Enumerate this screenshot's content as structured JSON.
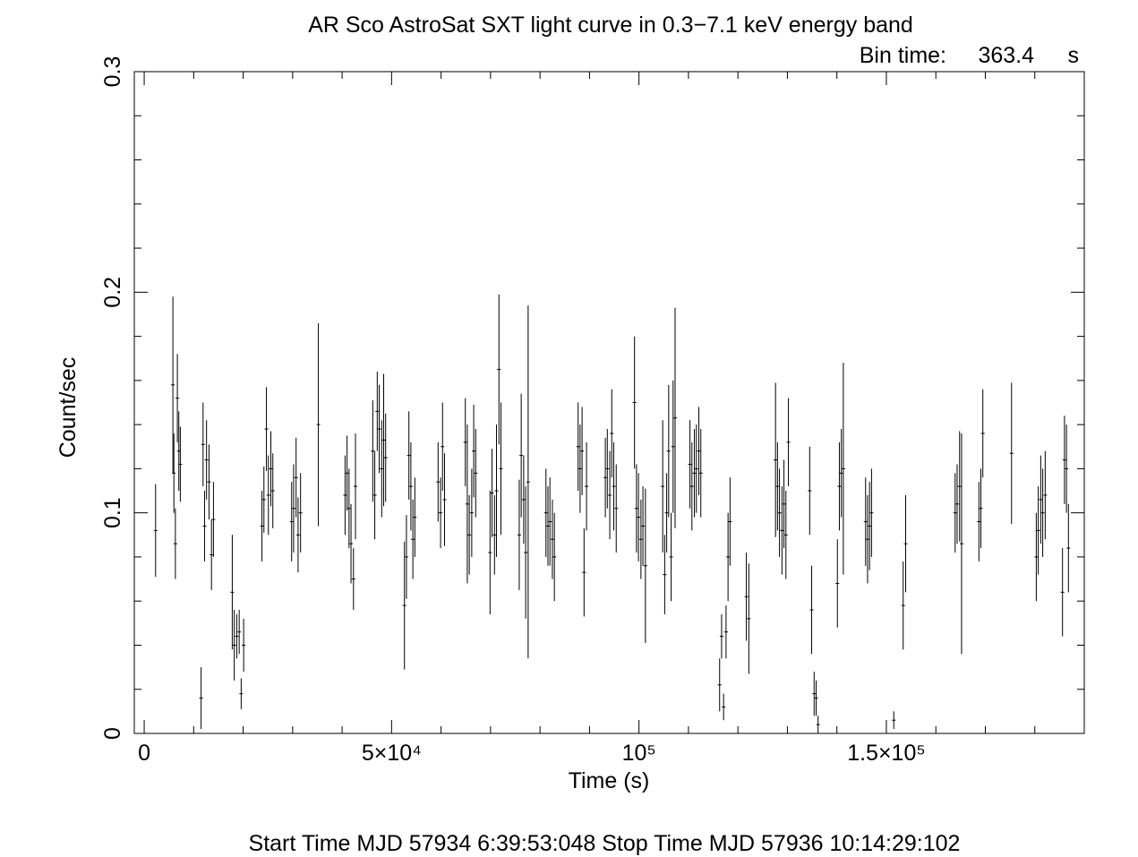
{
  "chart_data": {
    "type": "scatter",
    "title": "AR Sco   AstroSat SXT light curve in 0.3−7.1 keV energy band",
    "bin_time_label": "Bin time:",
    "bin_time_value": "363.4",
    "bin_time_unit": "s",
    "xlabel": "Time (s)",
    "ylabel": "Count/sec",
    "footer": "Start Time MJD 57934  6:39:53:048  Stop Time MJD 57936 10:14:29:102",
    "xlim": [
      -2000,
      190000
    ],
    "ylim": [
      0,
      0.3
    ],
    "grid": false,
    "x_ticks": [
      {
        "value": 0,
        "label": "0"
      },
      {
        "value": 50000,
        "label": "5×10⁴"
      },
      {
        "value": 100000,
        "label": "10⁵"
      },
      {
        "value": 150000,
        "label": "1.5×10⁵"
      }
    ],
    "y_ticks": [
      {
        "value": 0,
        "label": "0"
      },
      {
        "value": 0.1,
        "label": "0.1"
      },
      {
        "value": 0.2,
        "label": "0.2"
      },
      {
        "value": 0.3,
        "label": "0.3"
      }
    ],
    "series": [
      {
        "points": [
          [
            2300,
            0.092,
            0.021
          ],
          [
            5800,
            0.158,
            0.04
          ],
          [
            6000,
            0.118,
            0.018
          ],
          [
            6300,
            0.086,
            0.016
          ],
          [
            6700,
            0.152,
            0.02
          ],
          [
            7000,
            0.128,
            0.018
          ],
          [
            7300,
            0.122,
            0.017
          ],
          [
            11500,
            0.016,
            0.014
          ],
          [
            11900,
            0.131,
            0.019
          ],
          [
            12200,
            0.094,
            0.016
          ],
          [
            12600,
            0.124,
            0.018
          ],
          [
            13100,
            0.114,
            0.017
          ],
          [
            13600,
            0.081,
            0.016
          ],
          [
            14000,
            0.097,
            0.017
          ],
          [
            17800,
            0.064,
            0.026
          ],
          [
            18200,
            0.04,
            0.016
          ],
          [
            18700,
            0.044,
            0.01
          ],
          [
            19200,
            0.046,
            0.01
          ],
          [
            19600,
            0.018,
            0.007
          ],
          [
            20100,
            0.04,
            0.012
          ],
          [
            23800,
            0.094,
            0.016
          ],
          [
            24200,
            0.106,
            0.015
          ],
          [
            24700,
            0.138,
            0.019
          ],
          [
            25100,
            0.108,
            0.018
          ],
          [
            25600,
            0.12,
            0.017
          ],
          [
            26000,
            0.11,
            0.017
          ],
          [
            29800,
            0.096,
            0.018
          ],
          [
            30200,
            0.102,
            0.02
          ],
          [
            30700,
            0.116,
            0.018
          ],
          [
            31100,
            0.09,
            0.017
          ],
          [
            31600,
            0.1,
            0.018
          ],
          [
            35200,
            0.14,
            0.046
          ],
          [
            40600,
            0.108,
            0.018
          ],
          [
            41000,
            0.118,
            0.017
          ],
          [
            41400,
            0.102,
            0.018
          ],
          [
            41800,
            0.086,
            0.018
          ],
          [
            42300,
            0.07,
            0.014
          ],
          [
            42700,
            0.112,
            0.024
          ],
          [
            46200,
            0.128,
            0.023
          ],
          [
            46600,
            0.108,
            0.02
          ],
          [
            47100,
            0.146,
            0.018
          ],
          [
            47500,
            0.138,
            0.02
          ],
          [
            48000,
            0.12,
            0.022
          ],
          [
            48400,
            0.133,
            0.03
          ],
          [
            48800,
            0.125,
            0.02
          ],
          [
            52600,
            0.058,
            0.029
          ],
          [
            53000,
            0.08,
            0.019
          ],
          [
            53500,
            0.126,
            0.02
          ],
          [
            53900,
            0.112,
            0.02
          ],
          [
            54300,
            0.088,
            0.018
          ],
          [
            54700,
            0.098,
            0.018
          ],
          [
            59400,
            0.114,
            0.018
          ],
          [
            59900,
            0.1,
            0.016
          ],
          [
            60300,
            0.13,
            0.02
          ],
          [
            60700,
            0.106,
            0.021
          ],
          [
            64900,
            0.132,
            0.02
          ],
          [
            65300,
            0.104,
            0.036
          ],
          [
            65700,
            0.09,
            0.018
          ],
          [
            66200,
            0.1,
            0.02
          ],
          [
            66600,
            0.128,
            0.021
          ],
          [
            67000,
            0.118,
            0.02
          ],
          [
            69900,
            0.082,
            0.028
          ],
          [
            70300,
            0.109,
            0.02
          ],
          [
            70800,
            0.09,
            0.018
          ],
          [
            71200,
            0.11,
            0.03
          ],
          [
            71700,
            0.165,
            0.034
          ],
          [
            72100,
            0.12,
            0.03
          ],
          [
            75800,
            0.09,
            0.025
          ],
          [
            76200,
            0.126,
            0.028
          ],
          [
            76700,
            0.106,
            0.02
          ],
          [
            77100,
            0.082,
            0.03
          ],
          [
            77600,
            0.114,
            0.08
          ],
          [
            81200,
            0.1,
            0.02
          ],
          [
            81600,
            0.094,
            0.018
          ],
          [
            82000,
            0.096,
            0.02
          ],
          [
            82500,
            0.088,
            0.018
          ],
          [
            82900,
            0.08,
            0.02
          ],
          [
            87700,
            0.13,
            0.02
          ],
          [
            88100,
            0.12,
            0.02
          ],
          [
            88500,
            0.128,
            0.02
          ],
          [
            88900,
            0.073,
            0.02
          ],
          [
            89400,
            0.112,
            0.02
          ],
          [
            93200,
            0.116,
            0.018
          ],
          [
            93600,
            0.12,
            0.018
          ],
          [
            94100,
            0.108,
            0.02
          ],
          [
            94500,
            0.136,
            0.02
          ],
          [
            94900,
            0.112,
            0.02
          ],
          [
            95400,
            0.102,
            0.02
          ],
          [
            99100,
            0.15,
            0.03
          ],
          [
            99500,
            0.102,
            0.02
          ],
          [
            99900,
            0.098,
            0.02
          ],
          [
            100400,
            0.088,
            0.018
          ],
          [
            100800,
            0.094,
            0.018
          ],
          [
            101300,
            0.076,
            0.035
          ],
          [
            104800,
            0.112,
            0.03
          ],
          [
            105200,
            0.072,
            0.018
          ],
          [
            105600,
            0.1,
            0.018
          ],
          [
            106000,
            0.128,
            0.03
          ],
          [
            106500,
            0.08,
            0.02
          ],
          [
            106900,
            0.13,
            0.03
          ],
          [
            107300,
            0.143,
            0.05
          ],
          [
            110300,
            0.122,
            0.02
          ],
          [
            110700,
            0.112,
            0.02
          ],
          [
            111200,
            0.118,
            0.02
          ],
          [
            111600,
            0.12,
            0.02
          ],
          [
            112100,
            0.128,
            0.02
          ],
          [
            112500,
            0.118,
            0.02
          ],
          [
            116300,
            0.022,
            0.012
          ],
          [
            116700,
            0.044,
            0.01
          ],
          [
            117100,
            0.012,
            0.006
          ],
          [
            117600,
            0.046,
            0.012
          ],
          [
            118000,
            0.08,
            0.02
          ],
          [
            118400,
            0.096,
            0.02
          ],
          [
            121700,
            0.062,
            0.02
          ],
          [
            122200,
            0.052,
            0.025
          ],
          [
            127600,
            0.124,
            0.035
          ],
          [
            128000,
            0.112,
            0.02
          ],
          [
            128400,
            0.1,
            0.02
          ],
          [
            128900,
            0.092,
            0.02
          ],
          [
            129300,
            0.104,
            0.02
          ],
          [
            129700,
            0.09,
            0.02
          ],
          [
            130200,
            0.132,
            0.02
          ],
          [
            134500,
            0.11,
            0.02
          ],
          [
            134900,
            0.056,
            0.02
          ],
          [
            135400,
            0.018,
            0.01
          ],
          [
            135800,
            0.016,
            0.008
          ],
          [
            136200,
            0.004,
            0.004
          ],
          [
            140100,
            0.068,
            0.02
          ],
          [
            140500,
            0.112,
            0.02
          ],
          [
            140900,
            0.118,
            0.02
          ],
          [
            141300,
            0.12,
            0.048
          ],
          [
            145800,
            0.096,
            0.02
          ],
          [
            146200,
            0.088,
            0.02
          ],
          [
            146600,
            0.094,
            0.02
          ],
          [
            147000,
            0.1,
            0.02
          ],
          [
            151500,
            0.006,
            0.004
          ],
          [
            153400,
            0.058,
            0.02
          ],
          [
            153900,
            0.086,
            0.022
          ],
          [
            163900,
            0.1,
            0.018
          ],
          [
            164300,
            0.104,
            0.018
          ],
          [
            164800,
            0.112,
            0.025
          ],
          [
            165200,
            0.086,
            0.05
          ],
          [
            168700,
            0.096,
            0.018
          ],
          [
            169100,
            0.102,
            0.018
          ],
          [
            169500,
            0.136,
            0.02
          ],
          [
            175300,
            0.127,
            0.032
          ],
          [
            180300,
            0.08,
            0.02
          ],
          [
            180700,
            0.092,
            0.02
          ],
          [
            181200,
            0.106,
            0.02
          ],
          [
            181600,
            0.1,
            0.02
          ],
          [
            182100,
            0.108,
            0.02
          ],
          [
            185600,
            0.064,
            0.02
          ],
          [
            186000,
            0.124,
            0.02
          ],
          [
            186400,
            0.12,
            0.02
          ],
          [
            186800,
            0.084,
            0.02
          ]
        ]
      }
    ]
  }
}
